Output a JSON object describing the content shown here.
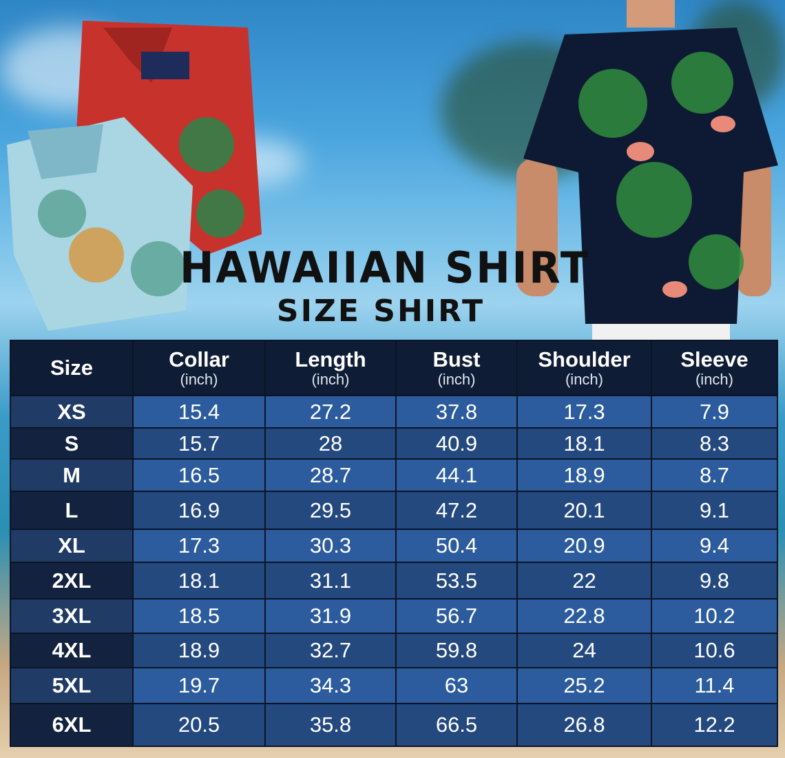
{
  "title": "HAWAIIAN SHIRT",
  "subtitle": "SIZE SHIRT",
  "colors": {
    "header": "#0f1c35",
    "row_light": "#2c5c9e",
    "row_dark": "#24497f",
    "size_col": "#13233f"
  },
  "table": {
    "headers": [
      {
        "label": "Size",
        "unit": ""
      },
      {
        "label": "Collar",
        "unit": "(inch)"
      },
      {
        "label": "Length",
        "unit": "(inch)"
      },
      {
        "label": "Bust",
        "unit": "(inch)"
      },
      {
        "label": "Shoulder",
        "unit": "(inch)"
      },
      {
        "label": "Sleeve",
        "unit": "(inch)"
      }
    ],
    "rows": [
      [
        "XS",
        "15.4",
        "27.2",
        "37.8",
        "17.3",
        "7.9"
      ],
      [
        "S",
        "15.7",
        "28",
        "40.9",
        "18.1",
        "8.3"
      ],
      [
        "M",
        "16.5",
        "28.7",
        "44.1",
        "18.9",
        "8.7"
      ],
      [
        "L",
        "16.9",
        "29.5",
        "47.2",
        "20.1",
        "9.1"
      ],
      [
        "XL",
        "17.3",
        "30.3",
        "50.4",
        "20.9",
        "9.4"
      ],
      [
        "2XL",
        "18.1",
        "31.1",
        "53.5",
        "22",
        "9.8"
      ],
      [
        "3XL",
        "18.5",
        "31.9",
        "56.7",
        "22.8",
        "10.2"
      ],
      [
        "4XL",
        "18.9",
        "32.7",
        "59.8",
        "24",
        "10.6"
      ],
      [
        "5XL",
        "19.7",
        "34.3",
        "63",
        "25.2",
        "11.4"
      ],
      [
        "6XL",
        "20.5",
        "35.8",
        "66.5",
        "26.8",
        "12.2"
      ]
    ]
  }
}
